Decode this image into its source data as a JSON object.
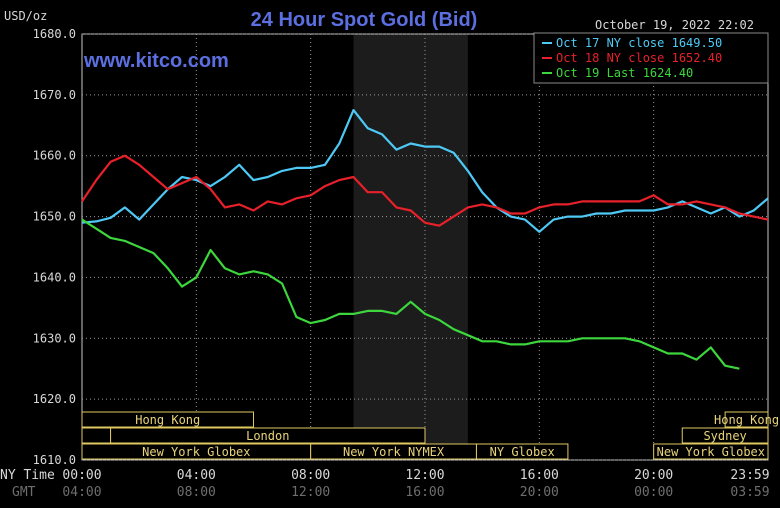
{
  "chart_data": {
    "type": "line",
    "title": "24 Hour Spot Gold (Bid)",
    "brand": "www.kitco.com",
    "timestamp": "October 19, 2022 22:02",
    "ylabel": "USD/oz",
    "ylim": [
      1610,
      1680
    ],
    "yticks": [
      "1680.0",
      "1670.0",
      "1660.0",
      "1650.0",
      "1640.0",
      "1630.0",
      "1620.0",
      "1610.0"
    ],
    "x_row_labels": {
      "ny": "NY Time",
      "gmt": "GMT"
    },
    "xticks_ny": [
      "00:00",
      "04:00",
      "08:00",
      "12:00",
      "16:00",
      "20:00",
      "23:59"
    ],
    "xticks_gmt": [
      "04:00",
      "08:00",
      "12:00",
      "16:00",
      "20:00",
      "00:00",
      "03:59"
    ],
    "xlim_hours": [
      0,
      24
    ],
    "shaded_region_hours": [
      9.5,
      13.5
    ],
    "sessions": [
      {
        "label": "Hong Kong",
        "start": 0,
        "end": 6,
        "row": 0
      },
      {
        "label": "Hong Kong",
        "start": 22.5,
        "end": 24,
        "row": 0
      },
      {
        "label": "",
        "start": 0,
        "end": 1,
        "row": 1
      },
      {
        "label": "London",
        "start": 1,
        "end": 12,
        "row": 1
      },
      {
        "label": "Sydney",
        "start": 21,
        "end": 24,
        "row": 1
      },
      {
        "label": "New York Globex",
        "start": 0,
        "end": 8,
        "row": 2
      },
      {
        "label": "New York NYMEX",
        "start": 8,
        "end": 13.8,
        "row": 2
      },
      {
        "label": "NY Globex",
        "start": 13.8,
        "end": 17,
        "row": 2
      },
      {
        "label": "New York Globex",
        "start": 20,
        "end": 24,
        "row": 2
      }
    ],
    "legend_placement": "top-right",
    "series": [
      {
        "name": "Oct 17 NY close 1649.50",
        "color": "#4ec9f5",
        "x": [
          0,
          0.5,
          1,
          1.5,
          2,
          2.5,
          3,
          3.5,
          4,
          4.5,
          5,
          5.5,
          6,
          6.5,
          7,
          7.5,
          8,
          8.5,
          9,
          9.5,
          10,
          10.5,
          11,
          11.5,
          12,
          12.5,
          13,
          13.5,
          14,
          14.5,
          15,
          15.5,
          16,
          16.5,
          17,
          17.5,
          18,
          18.5,
          19,
          19.5,
          20,
          20.5,
          21,
          21.5,
          22,
          22.5,
          23,
          23.5,
          24
        ],
        "y": [
          1649,
          1649.2,
          1649.8,
          1651.5,
          1649.5,
          1652,
          1654.5,
          1656.5,
          1656,
          1655,
          1656.5,
          1658.5,
          1656,
          1656.5,
          1657.5,
          1658,
          1658,
          1658.5,
          1662,
          1667.5,
          1664.5,
          1663.5,
          1661,
          1662,
          1661.5,
          1661.5,
          1660.5,
          1657.5,
          1654,
          1651.5,
          1650,
          1649.5,
          1647.5,
          1649.5,
          1650,
          1650,
          1650.5,
          1650.5,
          1651,
          1651,
          1651,
          1651.5,
          1652.5,
          1651.5,
          1650.5,
          1651.5,
          1650,
          1651,
          1653
        ]
      },
      {
        "name": "Oct 18 NY close 1652.40",
        "color": "#e8202a",
        "x": [
          0,
          0.5,
          1,
          1.5,
          2,
          2.5,
          3,
          3.5,
          4,
          4.5,
          5,
          5.5,
          6,
          6.5,
          7,
          7.5,
          8,
          8.5,
          9,
          9.5,
          10,
          10.5,
          11,
          11.5,
          12,
          12.5,
          13,
          13.5,
          14,
          14.5,
          15,
          15.5,
          16,
          16.5,
          17,
          17.5,
          18,
          18.5,
          19,
          19.5,
          20,
          20.5,
          21,
          21.5,
          22,
          22.5,
          23,
          23.5,
          24
        ],
        "y": [
          1652.5,
          1656,
          1659,
          1660,
          1658.5,
          1656.5,
          1654.5,
          1655.5,
          1656.5,
          1654.5,
          1651.5,
          1652,
          1651,
          1652.5,
          1652,
          1653,
          1653.5,
          1655,
          1656,
          1656.5,
          1654,
          1654,
          1651.5,
          1651,
          1649,
          1648.5,
          1650,
          1651.5,
          1652,
          1651.5,
          1650.5,
          1650.5,
          1651.5,
          1652,
          1652,
          1652.5,
          1652.5,
          1652.5,
          1652.5,
          1652.5,
          1653.5,
          1652,
          1652,
          1652.5,
          1652,
          1651.5,
          1650.5,
          1650,
          1649.5
        ]
      },
      {
        "name": "Oct 19 Last 1624.40",
        "color": "#3dd63d",
        "x": [
          0,
          0.5,
          1,
          1.5,
          2,
          2.5,
          3,
          3.5,
          4,
          4.5,
          5,
          5.5,
          6,
          6.5,
          7,
          7.5,
          8,
          8.5,
          9,
          9.5,
          10,
          10.5,
          11,
          11.5,
          12,
          12.5,
          13,
          13.5,
          14,
          14.5,
          15,
          15.5,
          16,
          16.5,
          17,
          17.5,
          18,
          18.5,
          19,
          19.5,
          20,
          20.5,
          21,
          21.5,
          22,
          22.5,
          23
        ],
        "y": [
          1649.5,
          1648,
          1646.5,
          1646,
          1645,
          1644,
          1641.5,
          1638.5,
          1640,
          1644.5,
          1641.5,
          1640.5,
          1641,
          1640.5,
          1639,
          1633.5,
          1632.5,
          1633,
          1634,
          1634,
          1634.5,
          1634.5,
          1634,
          1636,
          1634,
          1633,
          1631.5,
          1630.5,
          1629.5,
          1629.5,
          1629,
          1629,
          1629.5,
          1629.5,
          1629.5,
          1630,
          1630,
          1630,
          1630,
          1629.5,
          1628.5,
          1627.5,
          1627.5,
          1626.5,
          1628.5,
          1625.5,
          1625
        ]
      }
    ]
  }
}
